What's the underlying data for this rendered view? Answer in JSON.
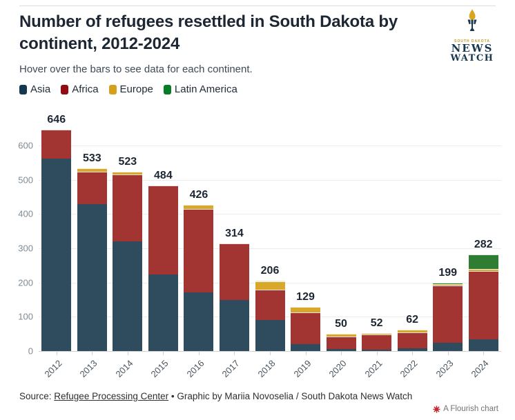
{
  "header": {
    "title": "Number of refugees resettled in South Dakota by continent, 2012-2024",
    "subtitle": "Hover over the bars to see data for each continent."
  },
  "logo": {
    "tagline": "SOUTH DAKOTA",
    "line1": "NEWS",
    "line2": "WATCH",
    "flame_color": "#d9a51f",
    "navy_color": "#17384e"
  },
  "legend": [
    {
      "label": "Asia",
      "color": "#143850"
    },
    {
      "label": "Africa",
      "color": "#930c12"
    },
    {
      "label": "Europe",
      "color": "#d4a01d"
    },
    {
      "label": "Latin America",
      "color": "#067c26"
    }
  ],
  "chart_data": {
    "type": "bar",
    "stacked": true,
    "title": "Number of refugees resettled in South Dakota by continent, 2012-2024",
    "xlabel": "",
    "ylabel": "",
    "grid": true,
    "legend_position": "top",
    "ylim": [
      0,
      700
    ],
    "yticks": [
      0,
      100,
      200,
      300,
      400,
      500,
      600
    ],
    "categories": [
      "2012",
      "2013",
      "2014",
      "2015",
      "2016",
      "2017",
      "2018",
      "2019",
      "2020",
      "2021",
      "2022",
      "2023",
      "2024"
    ],
    "series": [
      {
        "name": "Asia",
        "color": "#2f4c5e",
        "values": [
          561,
          428,
          320,
          223,
          172,
          149,
          90,
          20,
          7,
          5,
          8,
          24,
          35
        ]
      },
      {
        "name": "Africa",
        "color": "#a23431",
        "values": [
          85,
          95,
          195,
          261,
          242,
          165,
          89,
          92,
          35,
          44,
          46,
          167,
          198
        ]
      },
      {
        "name": "Europe",
        "color": "#d8a82a",
        "values": [
          0,
          10,
          8,
          0,
          12,
          0,
          25,
          17,
          8,
          3,
          8,
          4,
          7
        ]
      },
      {
        "name": "Latin America",
        "color": "#2f7d33",
        "values": [
          0,
          0,
          0,
          0,
          0,
          0,
          2,
          0,
          0,
          0,
          0,
          4,
          42
        ]
      }
    ],
    "totals": [
      646,
      533,
      523,
      484,
      426,
      314,
      206,
      129,
      50,
      52,
      62,
      199,
      282
    ]
  },
  "footer": {
    "source_prefix": "Source: ",
    "source_link": "Refugee Processing Center",
    "credit": " • Graphic by Mariia Novoselia / South Dakota News Watch",
    "flourish_label": "A Flourish chart",
    "flourish_color": "#c0262c"
  }
}
